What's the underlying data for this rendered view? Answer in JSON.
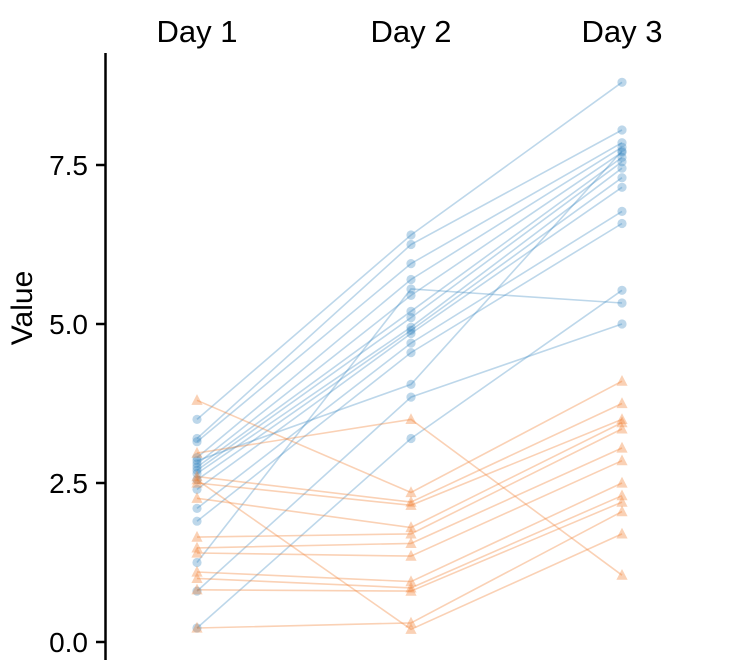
{
  "chart_data": {
    "type": "line",
    "subtype": "paired-spaghetti-plot",
    "title": "",
    "xlabel": "",
    "ylabel": "Value",
    "categories": [
      "Day 1",
      "Day 2",
      "Day 3"
    ],
    "ytick_values": [
      0.0,
      2.5,
      5.0,
      7.5
    ],
    "ytick_labels": [
      "0.0",
      "2.5",
      "5.0",
      "7.5"
    ],
    "ylim": [
      -0.3,
      9.3
    ],
    "grid": false,
    "legend_position": "none",
    "colors": {
      "blue_group": "#3182BD",
      "orange_group": "#F08032",
      "axis": "#000000",
      "background": "#FFFFFF"
    },
    "marker_shapes": {
      "blue_group": "circle",
      "orange_group": "triangle-up"
    },
    "series": [
      {
        "name": "blue_group",
        "subjects": [
          [
            3.5,
            6.4,
            8.8
          ],
          [
            3.2,
            6.25,
            8.05
          ],
          [
            3.15,
            5.95,
            7.85
          ],
          [
            2.9,
            5.7,
            7.78
          ],
          [
            2.85,
            4.05,
            7.72
          ],
          [
            2.8,
            5.45,
            7.7
          ],
          [
            2.75,
            5.2,
            7.62
          ],
          [
            2.7,
            5.1,
            7.55
          ],
          [
            2.65,
            4.95,
            7.45
          ],
          [
            2.55,
            4.9,
            7.3
          ],
          [
            2.4,
            4.85,
            7.15
          ],
          [
            2.1,
            4.7,
            6.77
          ],
          [
            1.9,
            4.55,
            6.58
          ],
          [
            1.25,
            5.55,
            5.33
          ],
          [
            0.8,
            3.85,
            5.0
          ],
          [
            0.22,
            3.2,
            5.53
          ]
        ]
      },
      {
        "name": "orange_group",
        "subjects": [
          [
            3.8,
            2.35,
            4.1
          ],
          [
            2.97,
            3.5,
            1.05
          ],
          [
            2.6,
            2.2,
            3.75
          ],
          [
            2.5,
            2.15,
            3.5
          ],
          [
            2.26,
            1.8,
            3.45
          ],
          [
            1.65,
            1.7,
            3.35
          ],
          [
            1.48,
            1.55,
            3.05
          ],
          [
            1.4,
            1.35,
            2.85
          ],
          [
            1.1,
            0.95,
            2.5
          ],
          [
            1.0,
            0.85,
            2.3
          ],
          [
            0.82,
            0.8,
            2.2
          ],
          [
            0.22,
            0.3,
            2.05
          ],
          [
            2.55,
            0.2,
            1.7
          ]
        ]
      }
    ]
  }
}
